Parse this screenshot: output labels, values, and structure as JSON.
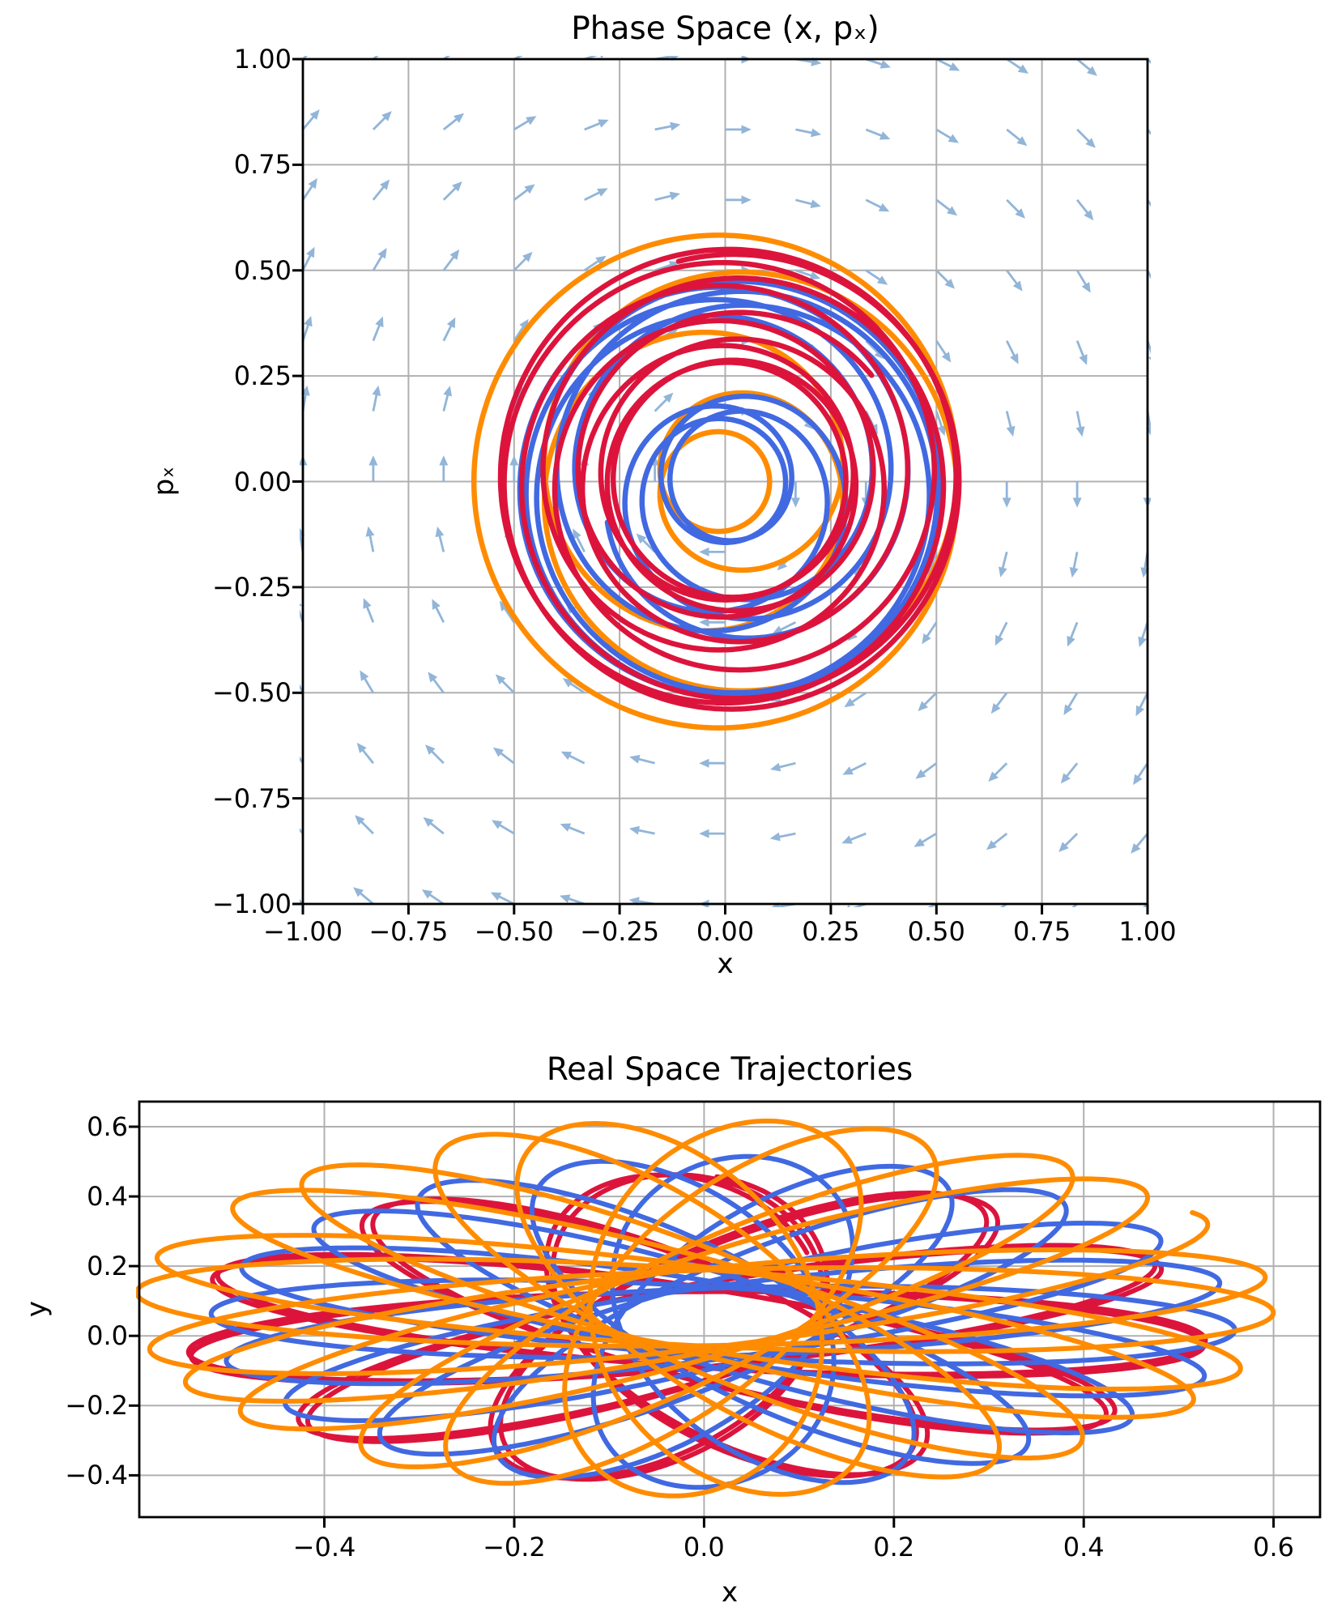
{
  "figure_background": "#ffffff",
  "palette": {
    "crimson": "#dc143c",
    "orange": "#ff8c00",
    "blue": "#4169e1",
    "quiver_arrow": "#92b5d8",
    "grid": "#b0b0b0",
    "spine": "#000000",
    "text": "#000000"
  },
  "chart_data": [
    {
      "id": "phase-space",
      "type": "line",
      "title": "Phase Space (x, pₓ)",
      "xlabel": "x",
      "ylabel": "pₓ",
      "xlim": [
        -1.0,
        1.0
      ],
      "ylim": [
        -1.0,
        1.0
      ],
      "grid": true,
      "xticks": [
        -1.0,
        -0.75,
        -0.5,
        -0.25,
        0.0,
        0.25,
        0.5,
        0.75,
        1.0
      ],
      "xtick_labels": [
        "−1.00",
        "−0.75",
        "−0.50",
        "−0.25",
        "0.00",
        "0.25",
        "0.50",
        "0.75",
        "1.00"
      ],
      "yticks": [
        -1.0,
        -0.75,
        -0.5,
        -0.25,
        0.0,
        0.25,
        0.5,
        0.75,
        1.0
      ],
      "ytick_labels": [
        "−1.00",
        "−0.75",
        "−0.50",
        "−0.25",
        "0.00",
        "0.25",
        "0.50",
        "0.75",
        "1.00"
      ],
      "quiver": {
        "description": "vector field u=p, v=−x (clockwise circulation)",
        "grid_n": 13,
        "xmin": -1.0,
        "xmax": 1.0,
        "ymin": -1.0,
        "ymax": 1.0,
        "arrow_length_data_units": 0.062,
        "color": "#92b5d8",
        "stroke_width": 2.8
      },
      "series": [
        {
          "name": "orange-trajectory",
          "color": "#ff8c00",
          "linewidth": 6.5,
          "generator": {
            "kind": "phase-spiral",
            "r0": 0.35,
            "r_mod": 0.245,
            "r_freq": 0.2,
            "r_phase": -1.5708,
            "theta0": 0.0,
            "direction": -1,
            "t_max": 68,
            "cx": 0.0,
            "cy": 0.0
          },
          "radius_range": [
            0.105,
            0.595
          ],
          "start_point": [
            0.105,
            0.0
          ]
        },
        {
          "name": "blue-trajectory",
          "color": "#4169e1",
          "linewidth": 6.5,
          "generator": {
            "kind": "phase-spiral",
            "r0": 0.315,
            "r_mod": 0.185,
            "r_freq": 0.24,
            "r_phase": 0.9,
            "theta0": 2.6,
            "direction": -1,
            "t_max": 62,
            "cx": 0.01,
            "cy": -0.01
          },
          "radius_range": [
            0.13,
            0.5
          ]
        },
        {
          "name": "crimson-trajectory",
          "color": "#dc143c",
          "linewidth": 6.5,
          "generator": {
            "kind": "phase-spiral",
            "r0": 0.41,
            "r_mod": 0.135,
            "r_freq": 0.18,
            "r_phase": 1.1,
            "theta0": 1.8,
            "direction": -1,
            "t_max": 64,
            "cx": 0.01,
            "cy": 0.005
          },
          "radius_range": [
            0.275,
            0.545
          ]
        }
      ]
    },
    {
      "id": "real-space",
      "type": "line",
      "title": "Real Space Trajectories",
      "xlabel": "x",
      "ylabel": "y",
      "xlim": [
        -0.595,
        0.649
      ],
      "ylim": [
        -0.52,
        0.672
      ],
      "grid": true,
      "xticks": [
        -0.4,
        -0.2,
        0.0,
        0.2,
        0.4,
        0.6
      ],
      "xtick_labels": [
        "−0.4",
        "−0.2",
        "0.0",
        "0.2",
        "0.4",
        "0.6"
      ],
      "yticks": [
        -0.4,
        -0.2,
        0.0,
        0.2,
        0.4,
        0.6
      ],
      "ytick_labels": [
        "−0.4",
        "−0.2",
        "0.0",
        "0.2",
        "0.4",
        "0.6"
      ],
      "series": [
        {
          "name": "crimson-trajectory",
          "color": "#dc143c",
          "linewidth": 6,
          "generator": {
            "kind": "rosette",
            "r1": 0.335,
            "r2": 0.205,
            "precession": 0.09,
            "phase1": 0.5,
            "phase2": 2.6,
            "y_scale": 0.82,
            "cx": -0.01,
            "cy": 0.02,
            "t_max": 70
          },
          "extent_x": [
            -0.55,
            0.53
          ],
          "extent_y": [
            -0.42,
            0.46
          ]
        },
        {
          "name": "blue-trajectory",
          "color": "#4169e1",
          "linewidth": 6,
          "generator": {
            "kind": "rosette",
            "r1": 0.325,
            "r2": 0.215,
            "precession": 0.1,
            "phase1": 4.0,
            "phase2": 1.2,
            "y_scale": 0.88,
            "cx": 0.02,
            "cy": 0.04,
            "t_max": 63
          },
          "extent_x": [
            -0.52,
            0.56
          ],
          "extent_y": [
            -0.43,
            0.52
          ]
        },
        {
          "name": "orange-trajectory",
          "color": "#ff8c00",
          "linewidth": 6,
          "generator": {
            "kind": "rosette",
            "r1": 0.36,
            "r2": 0.24,
            "precession": 0.085,
            "phase1": 2.0,
            "phase2": 5.3,
            "y_scale": 0.9,
            "cx": 0.0,
            "cy": 0.08,
            "t_max": 74
          },
          "extent_x": [
            -0.54,
            0.59
          ],
          "extent_y": [
            -0.46,
            0.63
          ]
        }
      ]
    }
  ]
}
